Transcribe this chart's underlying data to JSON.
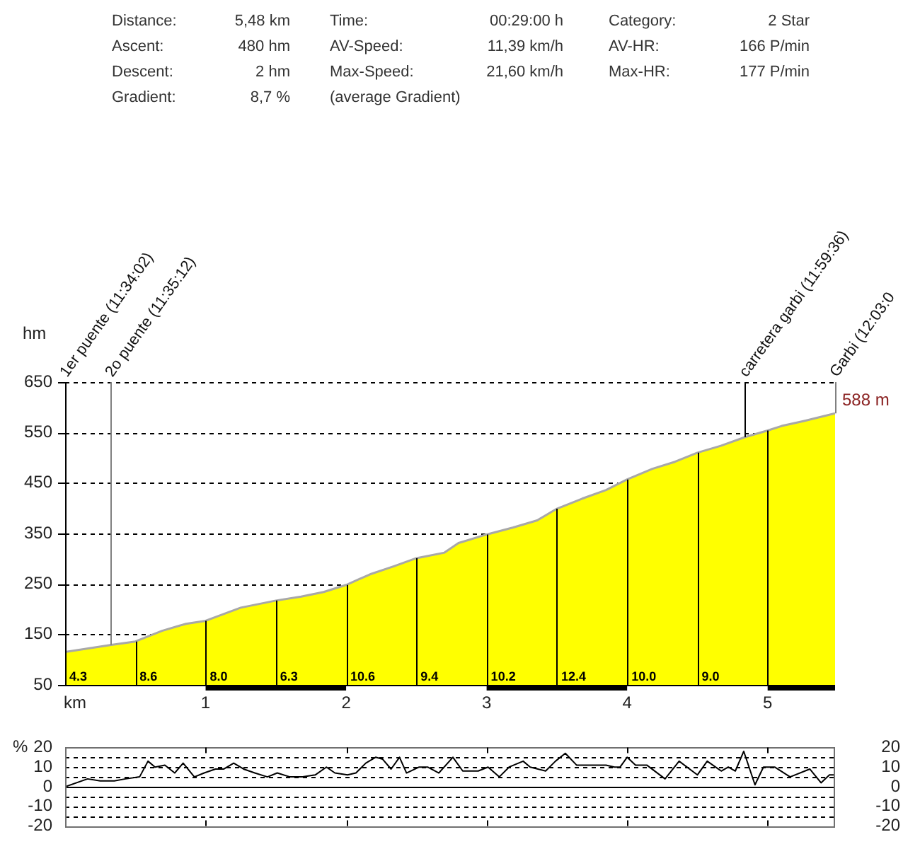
{
  "chart_data": [
    {
      "type": "other",
      "annotations": [
        "Distance:",
        "5,48 km",
        "Time:",
        "00:29:00 h",
        "Category:",
        "2 Star",
        "Ascent:",
        "480 hm",
        "AV-Speed:",
        "11,39 km/h",
        "AV-HR:",
        "166 P/min",
        "Descent:",
        "2 hm",
        "Max-Speed:",
        "21,60 km/h",
        "Max-HR:",
        "177 P/min",
        "Gradient:",
        "8,7 %",
        "(average Gradient)"
      ]
    },
    {
      "type": "area",
      "xlabel": "km",
      "ylabel": "hm",
      "color": "#ffff00",
      "x": [
        0,
        0.32,
        0.5,
        0.69,
        0.86,
        1.0,
        1.25,
        1.5,
        1.68,
        1.84,
        2.0,
        2.17,
        2.34,
        2.5,
        2.7,
        2.8,
        3.0,
        3.19,
        3.36,
        3.5,
        3.68,
        3.85,
        4.0,
        4.18,
        4.34,
        4.5,
        4.67,
        4.84,
        5.0,
        5.1,
        5.26,
        5.48
      ],
      "values": [
        115,
        129,
        136,
        157,
        171,
        177,
        203,
        217,
        225,
        234,
        248,
        269,
        285,
        301,
        312,
        331,
        348,
        362,
        376,
        399,
        419,
        436,
        457,
        478,
        492,
        510,
        524,
        541,
        554,
        563,
        573,
        588
      ],
      "value_labels": [
        null,
        null,
        null,
        null,
        null,
        null,
        null,
        null,
        null,
        null,
        null,
        null,
        null,
        null,
        null,
        null,
        null,
        null,
        null,
        null,
        null,
        null,
        null,
        null,
        null,
        null,
        null,
        null,
        null,
        null,
        null,
        "588 m"
      ],
      "xlim": [
        0,
        5.48
      ],
      "xticks": [
        1,
        2,
        3,
        4,
        5
      ],
      "ylim": [
        50,
        650
      ],
      "yticks": [
        50,
        150,
        250,
        350,
        450,
        550,
        650
      ],
      "grid": "y",
      "ref_lines": [
        {
          "axis": "x",
          "value": 0,
          "color": "#000000"
        },
        {
          "axis": "x",
          "value": 0.32,
          "color": "#808080"
        },
        {
          "axis": "x",
          "value": 4.84,
          "color": "#000000"
        },
        {
          "axis": "x",
          "value": 5.48,
          "color": "#808080"
        },
        {
          "axis": "x",
          "value": 0.5
        },
        {
          "axis": "x",
          "value": 1
        },
        {
          "axis": "x",
          "value": 1.5
        },
        {
          "axis": "x",
          "value": 2
        },
        {
          "axis": "x",
          "value": 2.5
        },
        {
          "axis": "x",
          "value": 3
        },
        {
          "axis": "x",
          "value": 3.5
        },
        {
          "axis": "x",
          "value": 4
        },
        {
          "axis": "x",
          "value": 4.5
        },
        {
          "axis": "x",
          "value": 5
        }
      ],
      "annotations": [
        {
          "text": "1er puente (11:34:02)",
          "x": 0,
          "y": 650
        },
        {
          "text": "2o puente (11:35:12)",
          "x": 0.32,
          "y": 650
        },
        {
          "text": "carretera garbi (11:59:36)",
          "x": 4.84,
          "y": 650
        },
        {
          "text": "Garbi (12:03:0",
          "x": 5.48,
          "y": 650
        },
        {
          "text": "4.3",
          "x": 0,
          "y": 50
        },
        {
          "text": "8.6",
          "x": 0.5,
          "y": 50
        },
        {
          "text": "8.0",
          "x": 1,
          "y": 50
        },
        {
          "text": "6.3",
          "x": 1.5,
          "y": 50
        },
        {
          "text": "10.6",
          "x": 2,
          "y": 50
        },
        {
          "text": "9.4",
          "x": 2.5,
          "y": 50
        },
        {
          "text": "10.2",
          "x": 3,
          "y": 50
        },
        {
          "text": "12.4",
          "x": 3.5,
          "y": 50
        },
        {
          "text": "10.0",
          "x": 4,
          "y": 50
        },
        {
          "text": "9.0",
          "x": 4.5,
          "y": 50
        }
      ]
    },
    {
      "type": "line",
      "ylabel": "%",
      "color": "#000000",
      "x": [
        0,
        0.16,
        0.25,
        0.35,
        0.43,
        0.53,
        0.59,
        0.64,
        0.71,
        0.78,
        0.84,
        0.92,
        0.99,
        1.07,
        1.13,
        1.2,
        1.27,
        1.35,
        1.44,
        1.51,
        1.6,
        1.69,
        1.78,
        1.86,
        1.92,
        2.01,
        2.07,
        2.14,
        2.21,
        2.26,
        2.32,
        2.38,
        2.43,
        2.52,
        2.58,
        2.66,
        2.76,
        2.83,
        2.94,
        3.01,
        3.09,
        3.16,
        3.26,
        3.31,
        3.42,
        3.49,
        3.56,
        3.64,
        3.72,
        3.85,
        3.91,
        3.95,
        4.0,
        4.06,
        4.14,
        4.27,
        4.37,
        4.5,
        4.57,
        4.67,
        4.72,
        4.77,
        4.83,
        4.91,
        4.97,
        5.05,
        5.16,
        5.3,
        5.38,
        5.44,
        5.48
      ],
      "values": [
        0,
        4,
        3,
        3,
        4,
        5,
        13,
        10,
        11,
        7,
        12,
        5,
        7,
        9,
        9,
        12,
        9,
        7,
        5,
        7,
        5,
        5,
        6,
        10,
        7,
        6,
        7,
        12,
        15,
        14,
        9,
        15,
        7,
        10,
        10,
        7,
        15,
        8,
        8,
        10,
        5,
        10,
        13,
        10,
        8,
        13,
        17,
        11,
        11,
        11,
        10,
        10,
        15,
        11,
        11,
        4,
        13,
        6,
        13,
        8,
        10,
        8,
        18,
        1,
        10,
        10,
        5,
        9,
        2,
        6,
        6
      ],
      "xlim": [
        0,
        5.48
      ],
      "xticks": [
        {
          "value": 1,
          "label": null
        },
        {
          "value": 2,
          "label": null
        },
        {
          "value": 3,
          "label": null
        },
        {
          "value": 4,
          "label": null
        },
        {
          "value": 5,
          "label": null
        }
      ],
      "ylim": [
        -20,
        20
      ],
      "yticks": [
        -20,
        {
          "value": -15,
          "label": null
        },
        -10,
        {
          "value": -5,
          "label": null
        },
        0,
        {
          "value": 5,
          "label": null
        },
        10,
        {
          "value": 15,
          "label": null
        },
        20
      ],
      "y2lim": [
        -20,
        20
      ],
      "y2ticks": [
        -20,
        -10,
        0,
        10,
        20
      ],
      "grid": "y",
      "tick_labels": "y",
      "marker": "none"
    }
  ]
}
